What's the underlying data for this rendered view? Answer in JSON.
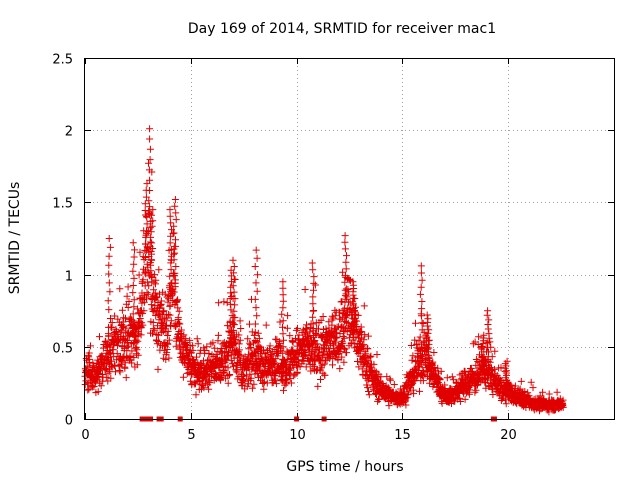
{
  "chart_data": {
    "type": "scatter",
    "title": "Day 169 of 2014, SRMTID for receiver mac1",
    "xlabel": "GPS time / hours",
    "ylabel": "SRMTID / TECUs",
    "xlim": [
      0,
      25
    ],
    "ylim": [
      0,
      2.5
    ],
    "xticks": [
      0,
      5,
      10,
      15,
      20
    ],
    "yticks": [
      0,
      0.5,
      1,
      1.5,
      2,
      2.5
    ],
    "xtick_labels": [
      "0",
      "5",
      "10",
      "15",
      "20"
    ],
    "ytick_labels": [
      "0",
      "0.5",
      "1",
      "1.5",
      "2",
      "2.5"
    ],
    "grid": true,
    "marker": "+",
    "series": [
      {
        "name": "SRMTID",
        "color": "#e00000",
        "profile": [
          [
            0.0,
            0.32
          ],
          [
            0.5,
            0.3
          ],
          [
            1.0,
            0.42
          ],
          [
            1.5,
            0.52
          ],
          [
            2.0,
            0.55
          ],
          [
            2.5,
            0.6
          ],
          [
            2.8,
            0.9
          ],
          [
            3.0,
            1.15
          ],
          [
            3.3,
            0.75
          ],
          [
            3.8,
            0.6
          ],
          [
            4.2,
            1.0
          ],
          [
            4.5,
            0.5
          ],
          [
            5.0,
            0.35
          ],
          [
            5.5,
            0.3
          ],
          [
            6.0,
            0.35
          ],
          [
            6.5,
            0.4
          ],
          [
            7.0,
            0.55
          ],
          [
            7.5,
            0.3
          ],
          [
            8.0,
            0.45
          ],
          [
            8.5,
            0.35
          ],
          [
            9.0,
            0.4
          ],
          [
            9.5,
            0.35
          ],
          [
            10.0,
            0.45
          ],
          [
            10.5,
            0.5
          ],
          [
            11.0,
            0.45
          ],
          [
            11.5,
            0.5
          ],
          [
            12.0,
            0.55
          ],
          [
            12.5,
            0.75
          ],
          [
            13.0,
            0.5
          ],
          [
            13.5,
            0.3
          ],
          [
            14.0,
            0.2
          ],
          [
            14.5,
            0.15
          ],
          [
            15.0,
            0.15
          ],
          [
            15.5,
            0.3
          ],
          [
            16.0,
            0.45
          ],
          [
            16.5,
            0.3
          ],
          [
            17.0,
            0.15
          ],
          [
            17.5,
            0.18
          ],
          [
            18.0,
            0.25
          ],
          [
            18.5,
            0.3
          ],
          [
            19.0,
            0.35
          ],
          [
            19.5,
            0.22
          ],
          [
            20.0,
            0.18
          ],
          [
            20.5,
            0.15
          ],
          [
            21.0,
            0.12
          ],
          [
            21.5,
            0.1
          ],
          [
            22.0,
            0.1
          ],
          [
            22.6,
            0.1
          ]
        ],
        "peaks": [
          [
            1.15,
            1.25
          ],
          [
            2.3,
            1.22
          ],
          [
            2.9,
            1.63
          ],
          [
            3.05,
            2.01
          ],
          [
            3.15,
            1.45
          ],
          [
            4.05,
            1.45
          ],
          [
            4.25,
            1.52
          ],
          [
            6.9,
            1.03
          ],
          [
            7.05,
            1.1
          ],
          [
            8.1,
            1.17
          ],
          [
            9.35,
            0.95
          ],
          [
            10.8,
            1.08
          ],
          [
            12.3,
            1.27
          ],
          [
            12.7,
            0.95
          ],
          [
            15.9,
            1.06
          ],
          [
            16.2,
            0.72
          ],
          [
            18.8,
            0.58
          ],
          [
            19.05,
            0.75
          ],
          [
            19.9,
            0.4
          ]
        ],
        "x_range": [
          0.0,
          22.6
        ],
        "point_count": 2600
      }
    ],
    "baseline_markers_x": [
      2.7,
      2.75,
      2.8,
      2.85,
      2.9,
      2.95,
      3.0,
      3.05,
      3.1,
      3.5,
      3.6,
      4.5,
      10.0,
      11.3,
      19.3,
      19.35
    ]
  }
}
